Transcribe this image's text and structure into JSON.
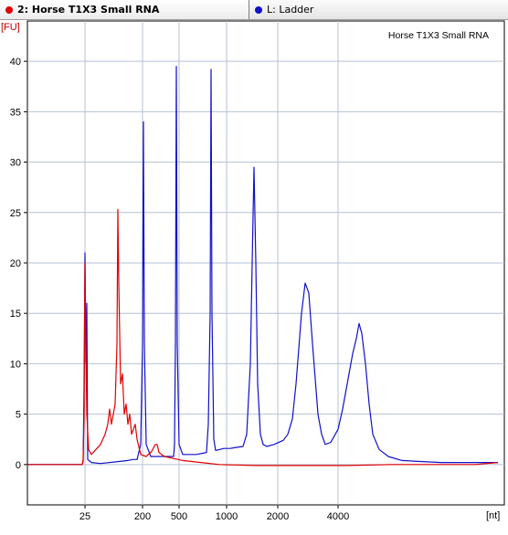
{
  "tabs": [
    {
      "label": "2: Horse T1X3 Small RNA",
      "color": "#e00000",
      "active": true
    },
    {
      "label": "L: Ladder",
      "color": "#1010c8",
      "active": false
    }
  ],
  "chart_data": {
    "type": "line",
    "title": "Horse T1X3 Small RNA",
    "ylabel": "[FU]",
    "xlabel": "[nt]",
    "ylim": [
      -4,
      44
    ],
    "yticks": [
      0,
      5,
      10,
      15,
      20,
      25,
      30,
      35,
      40
    ],
    "xticks": [
      "25",
      "200",
      "500",
      "1000",
      "2000",
      "4000"
    ],
    "grid": true,
    "series": [
      {
        "name": "L: Ladder",
        "color": "#1010c8",
        "points": [
          [
            0,
            0
          ],
          [
            60,
            0
          ],
          [
            61,
            0.3
          ],
          [
            62,
            8
          ],
          [
            63,
            21
          ],
          [
            64,
            10
          ],
          [
            65,
            16
          ],
          [
            66,
            0.5
          ],
          [
            70,
            0.2
          ],
          [
            80,
            0.1
          ],
          [
            100,
            0.3
          ],
          [
            110,
            0.4
          ],
          [
            115,
            0.5
          ],
          [
            120,
            0.5
          ],
          [
            124,
            2
          ],
          [
            126,
            12
          ],
          [
            127,
            34
          ],
          [
            128,
            12
          ],
          [
            130,
            2
          ],
          [
            135,
            0.8
          ],
          [
            150,
            0.8
          ],
          [
            160,
            0.8
          ],
          [
            161,
            2
          ],
          [
            162,
            12
          ],
          [
            163,
            39.5
          ],
          [
            164,
            12
          ],
          [
            166,
            2
          ],
          [
            170,
            1
          ],
          [
            185,
            1
          ],
          [
            196,
            1.2
          ],
          [
            198,
            4
          ],
          [
            200,
            15
          ],
          [
            201,
            39.2
          ],
          [
            202,
            15
          ],
          [
            204,
            2.5
          ],
          [
            206,
            1.4
          ],
          [
            215,
            1.6
          ],
          [
            222,
            1.6
          ],
          [
            228,
            1.7
          ],
          [
            236,
            1.8
          ],
          [
            240,
            3
          ],
          [
            244,
            10
          ],
          [
            246,
            20
          ],
          [
            248,
            29.5
          ],
          [
            250,
            20
          ],
          [
            252,
            8
          ],
          [
            255,
            3
          ],
          [
            258,
            2
          ],
          [
            262,
            1.8
          ],
          [
            270,
            2
          ],
          [
            280,
            2.4
          ],
          [
            285,
            3
          ],
          [
            290,
            4.5
          ],
          [
            294,
            8
          ],
          [
            300,
            15
          ],
          [
            304,
            18
          ],
          [
            308,
            17
          ],
          [
            312,
            12
          ],
          [
            318,
            5
          ],
          [
            322,
            3
          ],
          [
            326,
            2
          ],
          [
            332,
            2.2
          ],
          [
            340,
            3.5
          ],
          [
            345,
            5.5
          ],
          [
            350,
            8
          ],
          [
            356,
            11
          ],
          [
            360,
            12.5
          ],
          [
            363,
            14
          ],
          [
            366,
            13
          ],
          [
            370,
            10
          ],
          [
            374,
            6
          ],
          [
            378,
            3
          ],
          [
            385,
            1.5
          ],
          [
            395,
            0.8
          ],
          [
            410,
            0.4
          ],
          [
            430,
            0.3
          ],
          [
            453,
            0.2
          ],
          [
            460,
            0.2
          ],
          [
            475,
            0.2
          ],
          [
            490,
            0.2
          ],
          [
            500,
            0.2
          ],
          [
            515,
            0.2
          ]
        ]
      },
      {
        "name": "2: Horse T1X3 Small RNA",
        "color": "#e00000",
        "points": [
          [
            0,
            0
          ],
          [
            60,
            0
          ],
          [
            61,
            0.5
          ],
          [
            62,
            5
          ],
          [
            63,
            20
          ],
          [
            64,
            12
          ],
          [
            65,
            5
          ],
          [
            67,
            1.5
          ],
          [
            70,
            1
          ],
          [
            75,
            1.5
          ],
          [
            80,
            2
          ],
          [
            85,
            3
          ],
          [
            88,
            4
          ],
          [
            90,
            5.5
          ],
          [
            92,
            4
          ],
          [
            94,
            5
          ],
          [
            96,
            6
          ],
          [
            98,
            12
          ],
          [
            99,
            25.3
          ],
          [
            100,
            18
          ],
          [
            102,
            8
          ],
          [
            104,
            9
          ],
          [
            105,
            7
          ],
          [
            106,
            5
          ],
          [
            108,
            6
          ],
          [
            110,
            4
          ],
          [
            112,
            5
          ],
          [
            114,
            3
          ],
          [
            116,
            3.5
          ],
          [
            118,
            4
          ],
          [
            120,
            2.5
          ],
          [
            124,
            1
          ],
          [
            130,
            0.8
          ],
          [
            136,
            1.3
          ],
          [
            140,
            2
          ],
          [
            142,
            2
          ],
          [
            144,
            1.2
          ],
          [
            150,
            0.8
          ],
          [
            160,
            0.6
          ],
          [
            170,
            0.4
          ],
          [
            190,
            0.2
          ],
          [
            210,
            0
          ],
          [
            250,
            -0.1
          ],
          [
            300,
            -0.1
          ],
          [
            350,
            -0.1
          ],
          [
            400,
            0
          ],
          [
            455,
            0
          ],
          [
            490,
            0
          ],
          [
            515,
            0.2
          ]
        ]
      }
    ]
  }
}
